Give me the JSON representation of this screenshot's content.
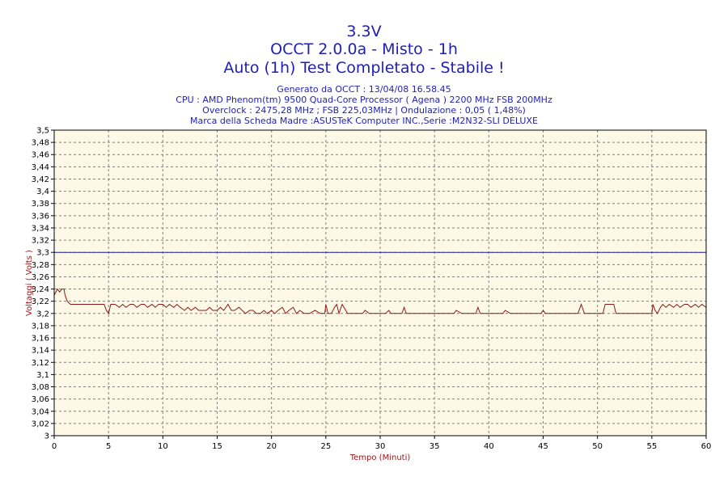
{
  "header": {
    "title_lines": [
      "3.3V",
      "OCCT 2.0.0a - Misto - 1h",
      "Auto (1h) Test Completato - Stabile !"
    ],
    "info_lines": [
      "Generato da OCCT : 13/04/08 16.58.45",
      "CPU : AMD Phenom(tm) 9500 Quad-Core Processor ( Agena ) 2200 MHz FSB 200MHz",
      "Overclock : 2475,28 MHz ; FSB 225,03MHz | Ondulazione : 0,05 ( 1,48%)",
      "Marca della Scheda Madre :ASUSTeK Computer INC.,Serie :M2N32-SLI DELUXE"
    ]
  },
  "colors": {
    "title": "#1f1fb4",
    "plot_background": "#fdf9e6",
    "grid": "#808080",
    "series": "#8b1a1a",
    "reference_line": "#1f1fb4",
    "axis_label": "#a31515"
  },
  "chart_data": {
    "type": "line",
    "xlabel": "Tempo (Minuti)",
    "ylabel": "Voltaggi ( Volts )",
    "xlim": [
      0,
      60
    ],
    "ylim": [
      3.0,
      3.5
    ],
    "x_ticks": [
      0,
      5,
      10,
      15,
      20,
      25,
      30,
      35,
      40,
      45,
      50,
      55,
      60
    ],
    "x_tick_labels": [
      "0",
      "5",
      "10",
      "15",
      "20",
      "25",
      "30",
      "35",
      "40",
      "45",
      "50",
      "55",
      "60"
    ],
    "y_ticks": [
      3.0,
      3.02,
      3.04,
      3.06,
      3.08,
      3.1,
      3.12,
      3.14,
      3.16,
      3.18,
      3.2,
      3.22,
      3.24,
      3.26,
      3.28,
      3.3,
      3.32,
      3.34,
      3.36,
      3.38,
      3.4,
      3.42,
      3.44,
      3.46,
      3.48,
      3.5
    ],
    "y_tick_labels": [
      "3",
      "3,02",
      "3,04",
      "3,06",
      "3,08",
      "3,1",
      "3,12",
      "3,14",
      "3,16",
      "3,18",
      "3,2",
      "3,22",
      "3,24",
      "3,26",
      "3,28",
      "3,3",
      "3,32",
      "3,34",
      "3,36",
      "3,38",
      "3,4",
      "3,42",
      "3,44",
      "3,46",
      "3,48",
      "3,5"
    ],
    "grid": true,
    "reference_line": {
      "y": 3.3
    },
    "series": [
      {
        "x": [
          0,
          0.3,
          0.5,
          0.7,
          0.9,
          1.0,
          1.2,
          1.5,
          2.0,
          3.0,
          4.0,
          4.6,
          4.8,
          5.0,
          5.2,
          5.6,
          6.0,
          6.3,
          6.6,
          7.0,
          7.3,
          7.6,
          8.0,
          8.3,
          8.6,
          9.0,
          9.3,
          9.6,
          10.0,
          10.3,
          10.6,
          11.0,
          11.3,
          11.6,
          12.0,
          12.3,
          12.6,
          13.0,
          13.3,
          13.6,
          14.0,
          14.3,
          14.6,
          15.0,
          15.3,
          15.6,
          16.0,
          16.3,
          16.6,
          17.0,
          17.3,
          17.6,
          18.0,
          18.3,
          18.6,
          19.0,
          19.3,
          19.6,
          20.0,
          20.3,
          20.6,
          21.0,
          21.3,
          21.6,
          22.0,
          22.3,
          22.6,
          23.0,
          23.5,
          24.0,
          24.5,
          24.9,
          25.0,
          25.2,
          25.5,
          25.8,
          26.0,
          26.2,
          26.5,
          27.0,
          27.5,
          28.0,
          28.4,
          28.6,
          29.0,
          29.5,
          30.0,
          30.5,
          30.8,
          31.0,
          31.5,
          32.0,
          32.2,
          32.4,
          33.0,
          33.5,
          34.0,
          35.0,
          36.0,
          36.8,
          37.0,
          37.5,
          38.0,
          38.8,
          39.0,
          39.2,
          40.0,
          41.0,
          41.3,
          41.5,
          42.0,
          43.0,
          44.0,
          44.8,
          45.0,
          45.2,
          46.0,
          47.0,
          48.0,
          48.2,
          48.5,
          48.8,
          49.0,
          49.5,
          50.0,
          50.5,
          50.7,
          51.0,
          51.5,
          51.7,
          52.0,
          53.0,
          54.0,
          55.0,
          55.1,
          55.3,
          55.5,
          55.8,
          56.0,
          56.3,
          56.6,
          57.0,
          57.3,
          57.6,
          58.0,
          58.3,
          58.6,
          59.0,
          59.3,
          59.6,
          60.0
        ],
        "values": [
          3.23,
          3.24,
          3.235,
          3.24,
          3.24,
          3.23,
          3.22,
          3.215,
          3.215,
          3.215,
          3.215,
          3.215,
          3.205,
          3.2,
          3.215,
          3.215,
          3.21,
          3.215,
          3.21,
          3.215,
          3.215,
          3.21,
          3.215,
          3.215,
          3.21,
          3.215,
          3.21,
          3.215,
          3.215,
          3.21,
          3.215,
          3.21,
          3.215,
          3.21,
          3.205,
          3.21,
          3.205,
          3.21,
          3.205,
          3.205,
          3.205,
          3.21,
          3.205,
          3.205,
          3.21,
          3.205,
          3.215,
          3.205,
          3.205,
          3.21,
          3.205,
          3.2,
          3.205,
          3.205,
          3.2,
          3.2,
          3.205,
          3.2,
          3.205,
          3.2,
          3.205,
          3.21,
          3.2,
          3.205,
          3.21,
          3.2,
          3.205,
          3.2,
          3.2,
          3.205,
          3.2,
          3.2,
          3.215,
          3.2,
          3.2,
          3.21,
          3.215,
          3.2,
          3.215,
          3.2,
          3.2,
          3.2,
          3.2,
          3.205,
          3.2,
          3.2,
          3.2,
          3.2,
          3.205,
          3.2,
          3.2,
          3.2,
          3.21,
          3.2,
          3.2,
          3.2,
          3.2,
          3.2,
          3.2,
          3.2,
          3.205,
          3.2,
          3.2,
          3.2,
          3.21,
          3.2,
          3.2,
          3.2,
          3.2,
          3.205,
          3.2,
          3.2,
          3.2,
          3.2,
          3.205,
          3.2,
          3.2,
          3.2,
          3.2,
          3.2,
          3.215,
          3.2,
          3.2,
          3.2,
          3.2,
          3.2,
          3.215,
          3.215,
          3.215,
          3.2,
          3.2,
          3.2,
          3.2,
          3.2,
          3.215,
          3.205,
          3.2,
          3.21,
          3.215,
          3.21,
          3.215,
          3.21,
          3.215,
          3.21,
          3.215,
          3.215,
          3.21,
          3.215,
          3.21,
          3.215,
          3.21
        ]
      }
    ]
  }
}
